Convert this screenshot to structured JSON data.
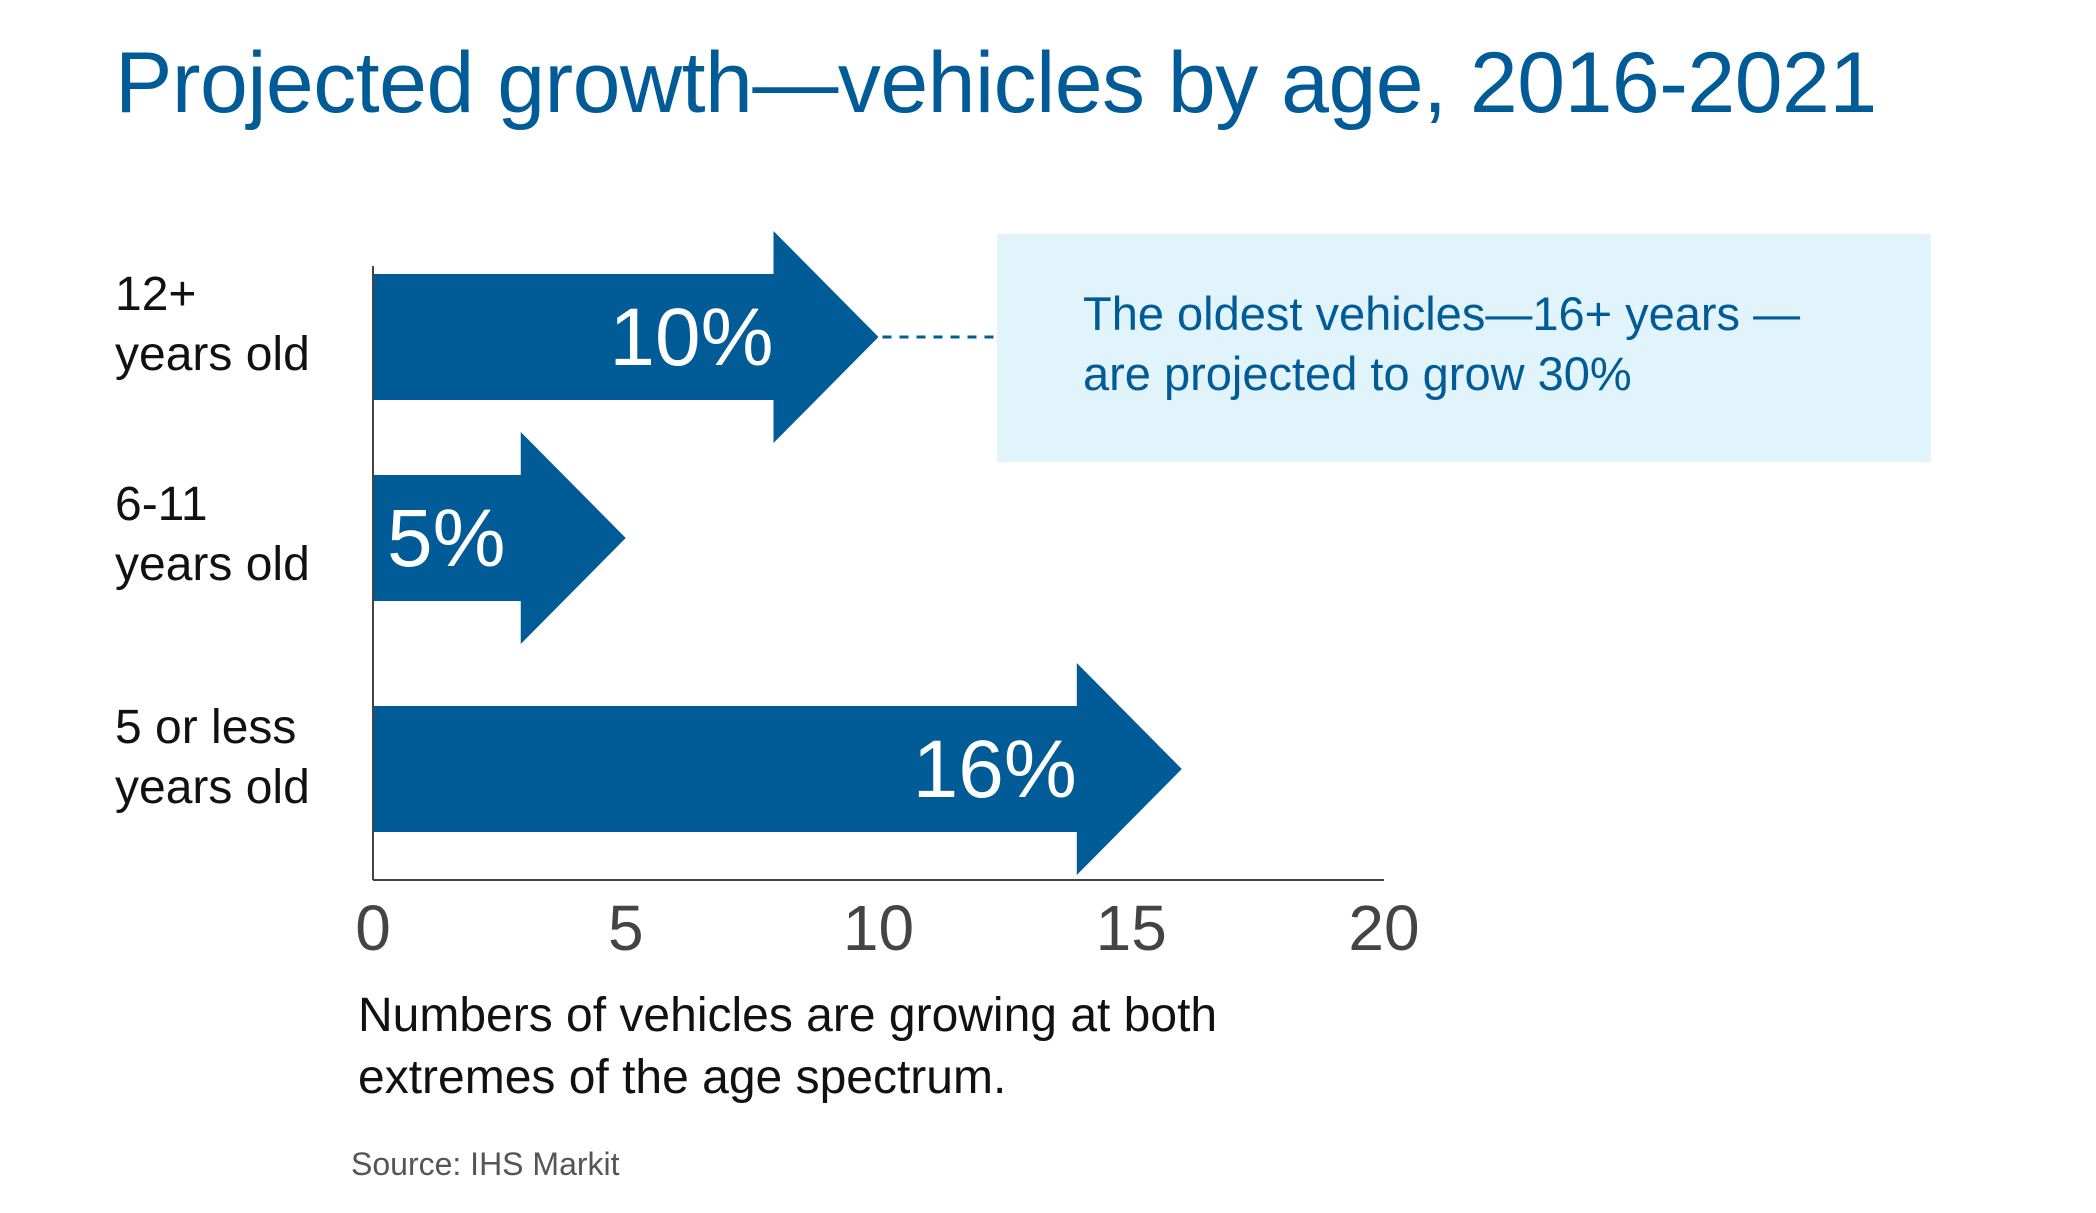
{
  "chart_data": {
    "type": "bar",
    "orientation": "horizontal",
    "title": "Projected growth—vehicles by age, 2016-2021",
    "categories": [
      {
        "line1": "12+",
        "line2": "years old"
      },
      {
        "line1": "6-11",
        "line2": "years old"
      },
      {
        "line1": "5 or less",
        "line2": "years old"
      }
    ],
    "values": [
      10,
      5,
      16
    ],
    "data_labels": [
      "10%",
      "5%",
      "16%"
    ],
    "xlim": [
      0,
      20
    ],
    "xticks": [
      "0",
      "5",
      "10",
      "15",
      "20"
    ],
    "grid": false,
    "bar_style": "arrow",
    "bar_color": "#005b96",
    "annotation": {
      "line1": "The oldest vehicles—16+ years —",
      "line2": "are projected to grow 30%",
      "background": "#e1f3fb"
    },
    "caption": {
      "line1": "Numbers of vehicles are growing at both",
      "line2": "extremes of the age spectrum."
    },
    "source": "Source: IHS Markit"
  }
}
